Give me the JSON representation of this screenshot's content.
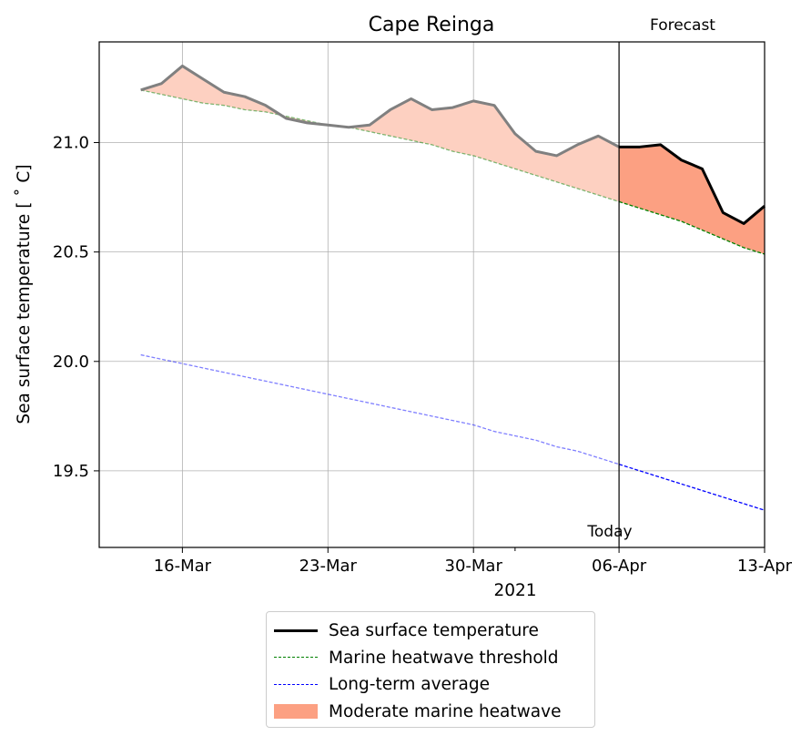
{
  "chart_data": {
    "type": "line",
    "title": "Cape Reinga",
    "ylabel": "Sea surface temperature [$^\\circ$C]",
    "ylabel_display": "Sea surface temperature [ ˚ C]",
    "xlabel": "2021",
    "x_start": "2021-03-14",
    "x_end": "2021-04-12",
    "x_range": [
      "2021-03-12",
      "2021-04-13"
    ],
    "ylim": [
      19.15,
      21.46
    ],
    "grid": true,
    "x_ticks": [
      {
        "date": "2021-03-16",
        "label": "16-Mar"
      },
      {
        "date": "2021-03-23",
        "label": "23-Mar"
      },
      {
        "date": "2021-03-30",
        "label": "30-Mar"
      },
      {
        "date": "2021-04-06",
        "label": "06-Apr"
      },
      {
        "date": "2021-04-13",
        "label": "13-Apr"
      }
    ],
    "y_ticks": [
      19.5,
      20.0,
      20.5,
      21.0
    ],
    "today": "2021-04-06",
    "today_label": "Today",
    "forecast_label": "Forecast",
    "series": [
      {
        "name": "Sea surface temperature",
        "color": "#000000",
        "history_color": "#808080",
        "values": [
          21.24,
          21.27,
          21.35,
          21.29,
          21.23,
          21.21,
          21.17,
          21.11,
          21.09,
          21.08,
          21.07,
          21.08,
          21.15,
          21.2,
          21.15,
          21.16,
          21.19,
          21.17,
          21.04,
          20.96,
          20.94,
          20.99,
          21.03,
          20.98,
          20.98,
          20.99,
          20.92,
          20.88,
          20.68,
          20.63,
          20.71
        ]
      },
      {
        "name": "Marine heatwave threshold",
        "color": "#008000",
        "values": [
          21.24,
          21.22,
          21.2,
          21.18,
          21.17,
          21.15,
          21.14,
          21.12,
          21.1,
          21.08,
          21.07,
          21.05,
          21.03,
          21.01,
          20.99,
          20.96,
          20.94,
          20.91,
          20.88,
          20.85,
          20.82,
          20.79,
          20.76,
          20.73,
          20.7,
          20.67,
          20.64,
          20.6,
          20.56,
          20.52,
          20.49
        ]
      },
      {
        "name": "Long-term average",
        "color": "#0000ff",
        "values": [
          20.03,
          20.01,
          19.99,
          19.97,
          19.95,
          19.93,
          19.91,
          19.89,
          19.87,
          19.85,
          19.83,
          19.81,
          19.79,
          19.77,
          19.75,
          19.73,
          19.71,
          19.68,
          19.66,
          19.64,
          19.61,
          19.59,
          19.56,
          19.53,
          19.5,
          19.47,
          19.44,
          19.41,
          19.38,
          19.35,
          19.32
        ]
      }
    ],
    "fill": {
      "name": "Moderate marine heatwave",
      "color": "#fca082",
      "history_color": "#fdd0c1"
    }
  }
}
